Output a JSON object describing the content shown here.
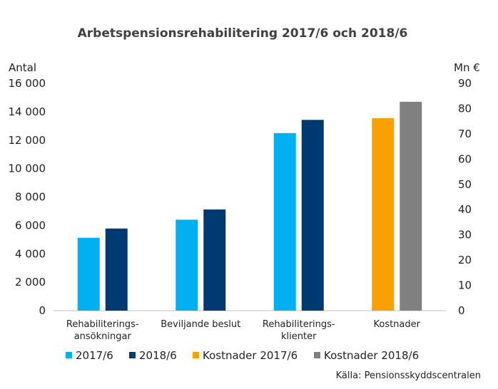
{
  "chart_data": {
    "type": "bar",
    "title": "Arbetspensionsrehabilitering  2017/6 och 2018/6",
    "ylabel_left": "Antal",
    "ylabel_right": "Mn €",
    "ylim_left": [
      0,
      16000
    ],
    "ylim_right": [
      0,
      90
    ],
    "yticks_left": [
      "0",
      "2 000",
      "4 000",
      "6 000",
      "8 000",
      "10 000",
      "12 000",
      "14 000",
      "16 000"
    ],
    "yticks_right": [
      "0",
      "10",
      "20",
      "30",
      "40",
      "50",
      "60",
      "70",
      "80",
      "90"
    ],
    "grid": false,
    "categories": [
      [
        "Rehabiliterings-",
        "ansökningar"
      ],
      [
        "Beviljande beslut"
      ],
      [
        "Rehabiliterings-",
        "klienter"
      ],
      [
        "Kostnader"
      ]
    ],
    "series": [
      {
        "name": "2017/6",
        "axis": "left",
        "color": "#00B0F0",
        "values": [
          5130,
          6400,
          12500,
          null
        ]
      },
      {
        "name": "2018/6",
        "axis": "left",
        "color": "#003A70",
        "values": [
          5780,
          7120,
          13430,
          null
        ]
      },
      {
        "name": "Kostnader 2017/6",
        "axis": "right",
        "color": "#F7A000",
        "values": [
          null,
          null,
          null,
          76.2
        ]
      },
      {
        "name": "Kostnader 2018/6",
        "axis": "right",
        "color": "#808080",
        "values": [
          null,
          null,
          null,
          82.7
        ]
      }
    ],
    "legend_position": "bottom",
    "source": "Källa: Pensionsskyddscentralen"
  }
}
